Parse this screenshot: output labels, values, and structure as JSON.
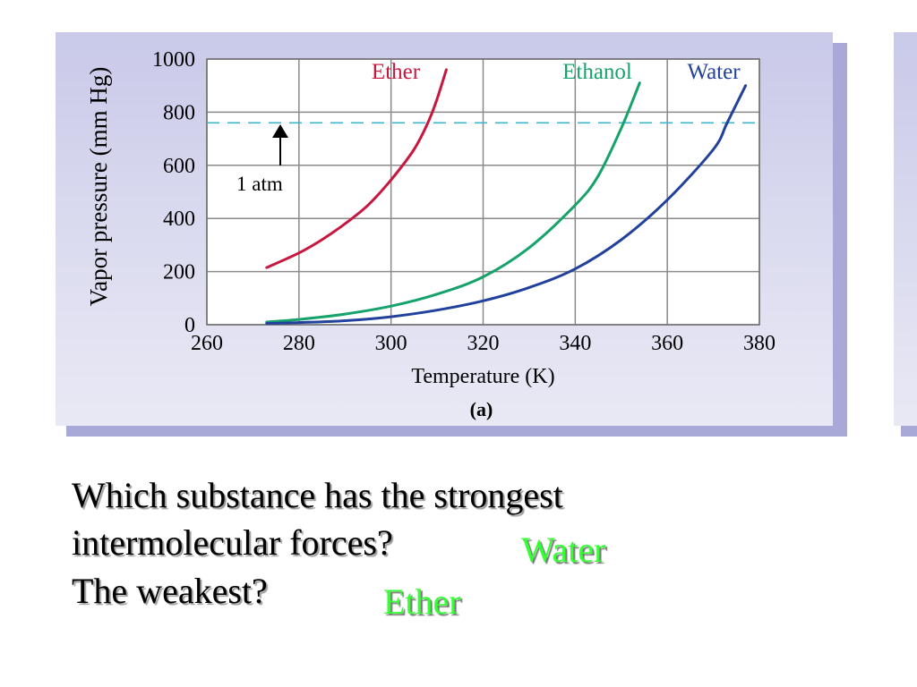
{
  "chart_data": {
    "type": "line",
    "xlabel": "Temperature (K)",
    "ylabel": "Vapor pressure (mm Hg)",
    "caption": "(a)",
    "xlim": [
      260,
      380
    ],
    "ylim": [
      0,
      1000
    ],
    "x_ticks": [
      260,
      280,
      300,
      320,
      340,
      360,
      380
    ],
    "y_ticks": [
      0,
      200,
      400,
      600,
      800,
      1000
    ],
    "grid": true,
    "reference_line": {
      "y": 760,
      "label": "1 atm",
      "color": "#3fb6c9"
    },
    "series": [
      {
        "name": "Ether",
        "color": "#c8173f",
        "x": [
          273,
          280,
          285,
          290,
          295,
          300,
          305,
          308,
          310,
          312
        ],
        "y": [
          215,
          270,
          320,
          380,
          450,
          545,
          660,
          760,
          850,
          960
        ]
      },
      {
        "name": "Ethanol",
        "color": "#16a36b",
        "x": [
          273,
          280,
          290,
          300,
          310,
          320,
          330,
          340,
          345,
          350,
          354
        ],
        "y": [
          10,
          20,
          40,
          70,
          115,
          180,
          290,
          450,
          560,
          740,
          910
        ]
      },
      {
        "name": "Water",
        "color": "#22419c",
        "x": [
          273,
          280,
          290,
          300,
          310,
          320,
          330,
          340,
          350,
          360,
          370,
          373,
          377
        ],
        "y": [
          5,
          8,
          15,
          30,
          55,
          90,
          140,
          210,
          320,
          470,
          660,
          760,
          900
        ]
      }
    ]
  },
  "slide": {
    "question_line1": "Which substance has the strongest",
    "question_line2": "intermolecular forces?",
    "question_line3": "The weakest?",
    "answer_strongest": "Water",
    "answer_weakest": "Ether",
    "answer_color": "#33ff33"
  }
}
